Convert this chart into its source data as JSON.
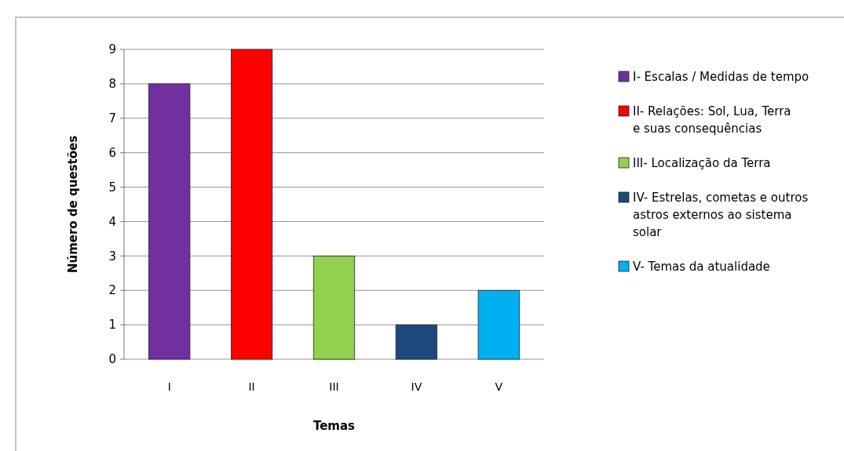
{
  "chart_data": {
    "type": "bar",
    "xlabel": "Temas",
    "ylabel": "Número de questões",
    "categories": [
      "I",
      "II",
      "III",
      "IV",
      "V"
    ],
    "series": [
      {
        "name": "I- Escalas / Medidas de tempo",
        "color": "#7030a0",
        "values": [
          8,
          null,
          null,
          null,
          null
        ]
      },
      {
        "name": "II- Relações: Sol, Lua, Terra e suas consequências",
        "color": "#ff0000",
        "values": [
          null,
          9,
          null,
          null,
          null
        ]
      },
      {
        "name": "III- Localização da Terra",
        "color": "#92d050",
        "values": [
          null,
          null,
          3,
          null,
          null
        ]
      },
      {
        "name": "IV- Estrelas, cometas e outros astros externos ao sistema solar",
        "color": "#1f497d",
        "values": [
          null,
          null,
          null,
          1,
          null
        ]
      },
      {
        "name": "V- Temas da atualidade",
        "color": "#00b0f0",
        "values": [
          null,
          null,
          null,
          null,
          2
        ]
      }
    ],
    "stacked": true,
    "ylim": [
      0,
      9
    ],
    "yticks": [
      0,
      1,
      2,
      3,
      4,
      5,
      6,
      7,
      8,
      9
    ],
    "grid": "y",
    "legend": "right"
  }
}
